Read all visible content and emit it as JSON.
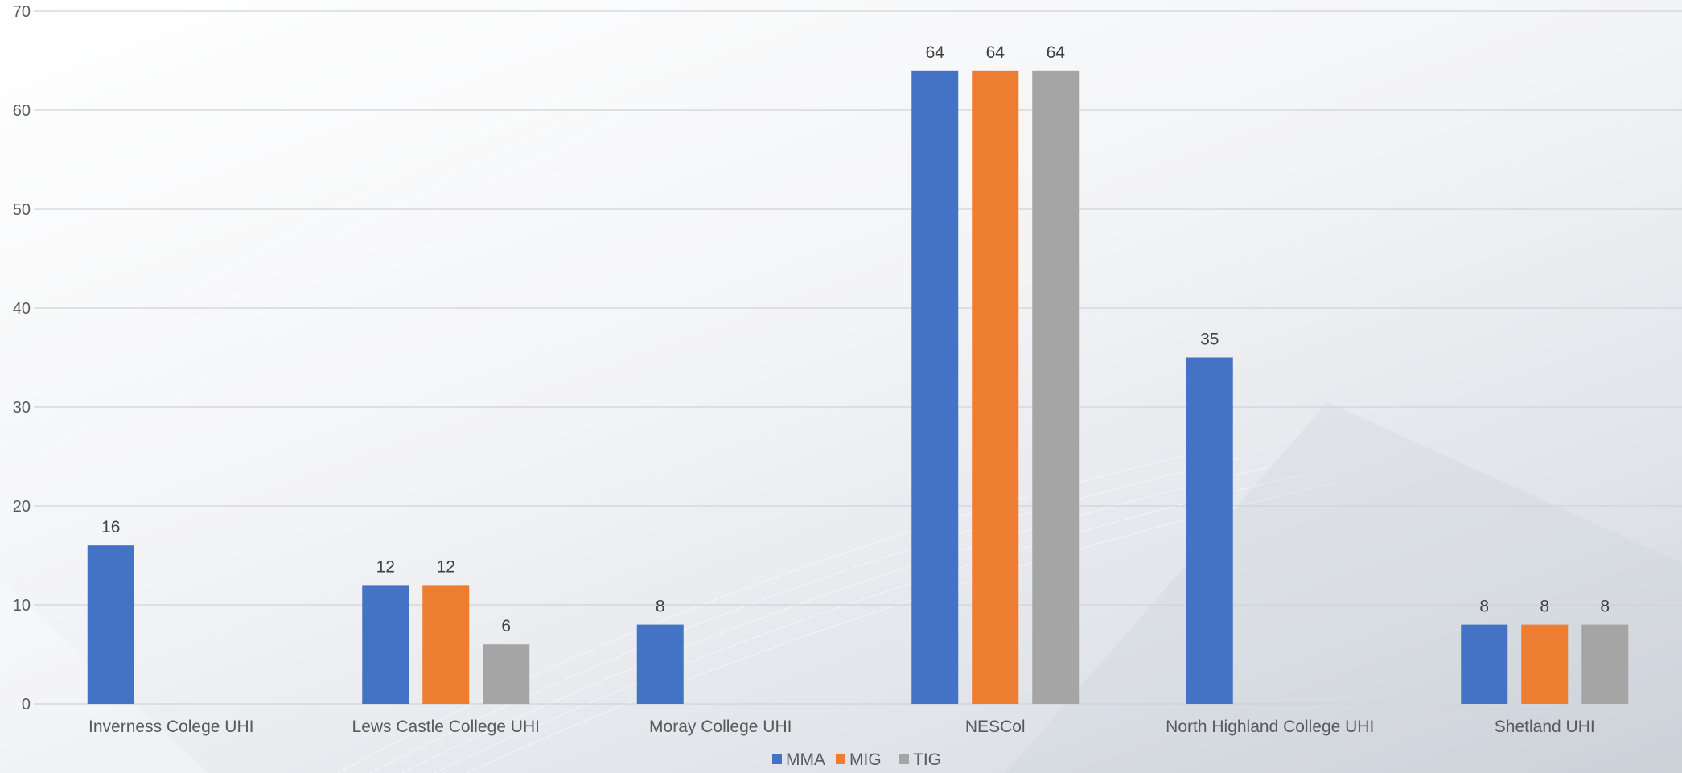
{
  "chart_data": {
    "type": "bar",
    "title": "",
    "xlabel": "",
    "ylabel": "",
    "ylim": [
      0,
      70
    ],
    "yticks": [
      0,
      10,
      20,
      30,
      40,
      50,
      60,
      70
    ],
    "grid": true,
    "legend_position": "bottom",
    "categories": [
      "Inverness Colege UHI",
      "Lews Castle College UHI",
      "Moray College UHI",
      "NESCol",
      "North Highland College UHI",
      "Shetland UHI"
    ],
    "series": [
      {
        "name": "MMA",
        "color": "#4472c4",
        "values": [
          16,
          12,
          8,
          64,
          35,
          8
        ]
      },
      {
        "name": "MIG",
        "color": "#ed7d31",
        "values": [
          null,
          12,
          null,
          64,
          null,
          8
        ]
      },
      {
        "name": "TIG",
        "color": "#a5a5a5",
        "values": [
          null,
          6,
          null,
          64,
          null,
          8
        ]
      }
    ]
  }
}
